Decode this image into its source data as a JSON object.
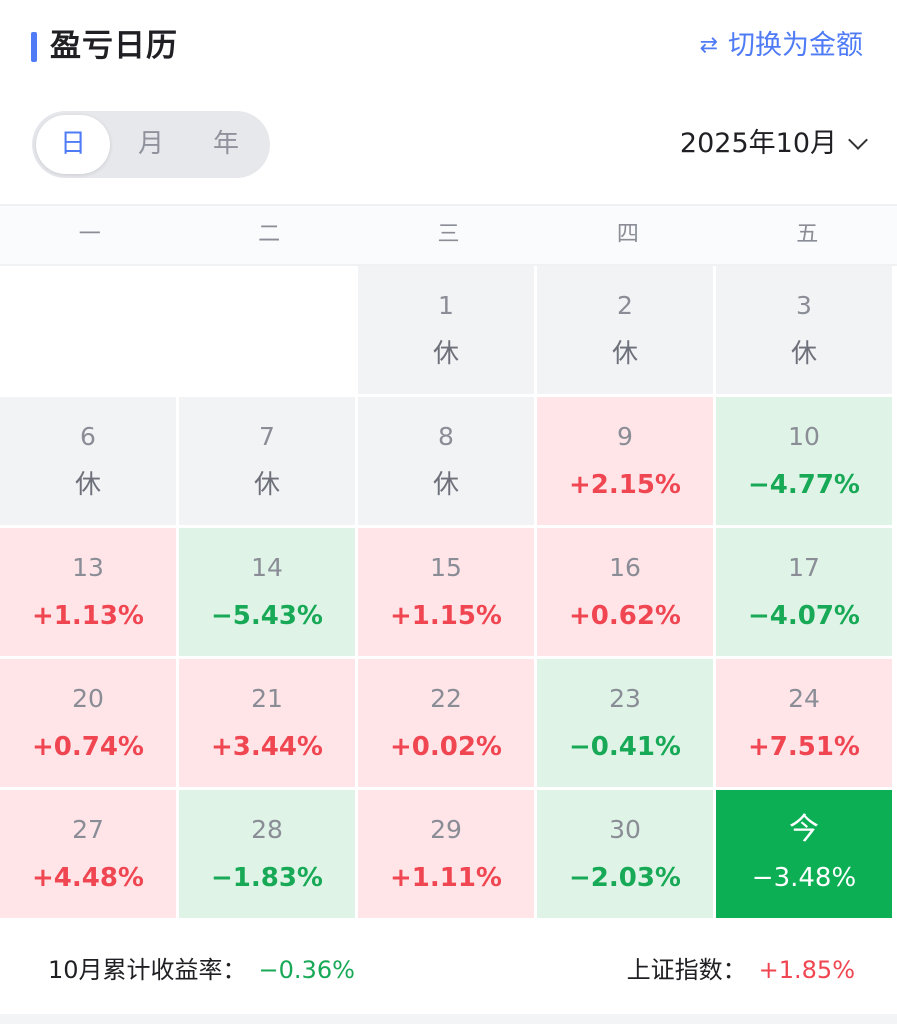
{
  "header": {
    "title": "盈亏日历",
    "switch_icon": "⇄",
    "switch_label": "切换为金额"
  },
  "period_tabs": [
    {
      "label": "日",
      "active": true
    },
    {
      "label": "月",
      "active": false
    },
    {
      "label": "年",
      "active": false
    }
  ],
  "month_select": {
    "value": "2025年10月"
  },
  "weekdays": [
    "一",
    "二",
    "三",
    "四",
    "五"
  ],
  "days": [
    {
      "date": "1",
      "value": "休",
      "type": "rest"
    },
    {
      "date": "2",
      "value": "休",
      "type": "rest"
    },
    {
      "date": "3",
      "value": "休",
      "type": "rest"
    },
    {
      "date": "6",
      "value": "休",
      "type": "rest"
    },
    {
      "date": "7",
      "value": "休",
      "type": "rest"
    },
    {
      "date": "8",
      "value": "休",
      "type": "rest"
    },
    {
      "date": "9",
      "value": "+2.15%",
      "type": "up"
    },
    {
      "date": "10",
      "value": "−4.77%",
      "type": "down"
    },
    {
      "date": "13",
      "value": "+1.13%",
      "type": "up"
    },
    {
      "date": "14",
      "value": "−5.43%",
      "type": "down"
    },
    {
      "date": "15",
      "value": "+1.15%",
      "type": "up"
    },
    {
      "date": "16",
      "value": "+0.62%",
      "type": "up"
    },
    {
      "date": "17",
      "value": "−4.07%",
      "type": "down"
    },
    {
      "date": "20",
      "value": "+0.74%",
      "type": "up"
    },
    {
      "date": "21",
      "value": "+3.44%",
      "type": "up"
    },
    {
      "date": "22",
      "value": "+0.02%",
      "type": "up"
    },
    {
      "date": "23",
      "value": "−0.41%",
      "type": "down"
    },
    {
      "date": "24",
      "value": "+7.51%",
      "type": "up"
    },
    {
      "date": "27",
      "value": "+4.48%",
      "type": "up"
    },
    {
      "date": "28",
      "value": "−1.83%",
      "type": "down"
    },
    {
      "date": "29",
      "value": "+1.11%",
      "type": "up"
    },
    {
      "date": "30",
      "value": "−2.03%",
      "type": "down"
    },
    {
      "date": "今",
      "value": "−3.48%",
      "type": "today"
    }
  ],
  "summary": {
    "month_return_label": "10月累计收益率：",
    "month_return_value": "−0.36%",
    "index_label": "上证指数：",
    "index_value": "+1.85%"
  },
  "colors": {
    "accent": "#4f7cf6",
    "up_bg": "#ffe5e8",
    "up_text": "#f04652",
    "down_bg": "#dff4e7",
    "down_text": "#18a957",
    "today_bg": "#0daf55",
    "rest_bg": "#f1f3f5"
  }
}
